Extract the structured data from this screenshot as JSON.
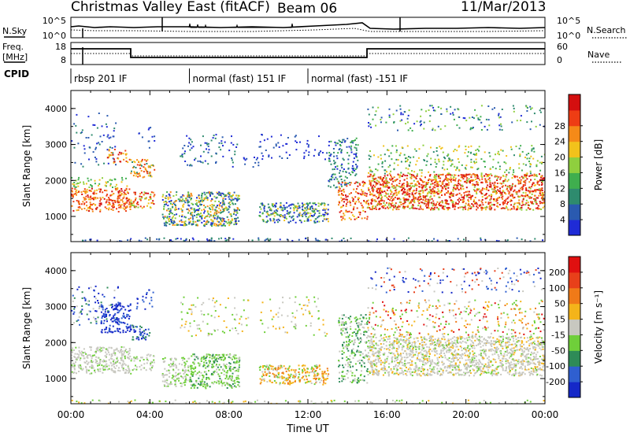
{
  "header": {
    "title": "Christmas Valley East (fitACF)",
    "beam": "Beam 06",
    "date": "11/Mar/2013"
  },
  "noise_panel": {
    "left_label": "N.Sky",
    "right_label": "N.Search",
    "left_ticks": [
      "10^5",
      "10^0"
    ],
    "right_ticks": [
      "10^5",
      "10^0"
    ]
  },
  "freq_panel": {
    "left_label_1": "Freq.",
    "left_label_2": "[MHz]",
    "right_label": "Nave",
    "left_ticks": [
      "18",
      "8"
    ],
    "right_ticks": [
      "60",
      "0"
    ]
  },
  "cpid": {
    "label": "CPID",
    "segments": [
      {
        "text": "rbsp 201 IF",
        "start_hour": 0
      },
      {
        "text": "normal (fast) 151 IF",
        "start_hour": 6
      },
      {
        "text": "normal (fast) -151 IF",
        "start_hour": 12
      }
    ]
  },
  "chart_data": [
    {
      "type": "heatmap",
      "name": "Power",
      "ylabel": "Slant Range [km]",
      "y_ticks": [
        "1000",
        "2000",
        "3000",
        "4000"
      ],
      "ylim": [
        300,
        4500
      ],
      "colorbar": {
        "label": "Power [dB]",
        "ticks": [
          "4",
          "8",
          "12",
          "16",
          "20",
          "24",
          "28"
        ],
        "colors": [
          "#1f2bd6",
          "#2a5ab0",
          "#2e8b6e",
          "#3fae4e",
          "#8fcf3e",
          "#f2c21b",
          "#f58a18",
          "#ee3d14",
          "#d40f0f"
        ]
      }
    },
    {
      "type": "heatmap",
      "name": "Velocity",
      "ylabel": "Slant Range [km]",
      "y_ticks": [
        "1000",
        "2000",
        "3000",
        "4000"
      ],
      "ylim": [
        300,
        4500
      ],
      "colorbar": {
        "label": "Velocity [m s⁻¹]",
        "ticks": [
          "200",
          "100",
          "50",
          "15",
          "-15",
          "-50",
          "-100",
          "-200"
        ],
        "colors": [
          "#1528c8",
          "#2f5fd0",
          "#2e8b57",
          "#6fcf3a",
          "#c8c8c0",
          "#f4b41a",
          "#f07a18",
          "#e8401a",
          "#e01010"
        ]
      }
    }
  ],
  "x_axis": {
    "label": "Time UT",
    "ticks": [
      "00:00",
      "04:00",
      "08:00",
      "12:00",
      "16:00",
      "20:00",
      "00:00"
    ],
    "xlim": [
      0,
      24
    ]
  }
}
